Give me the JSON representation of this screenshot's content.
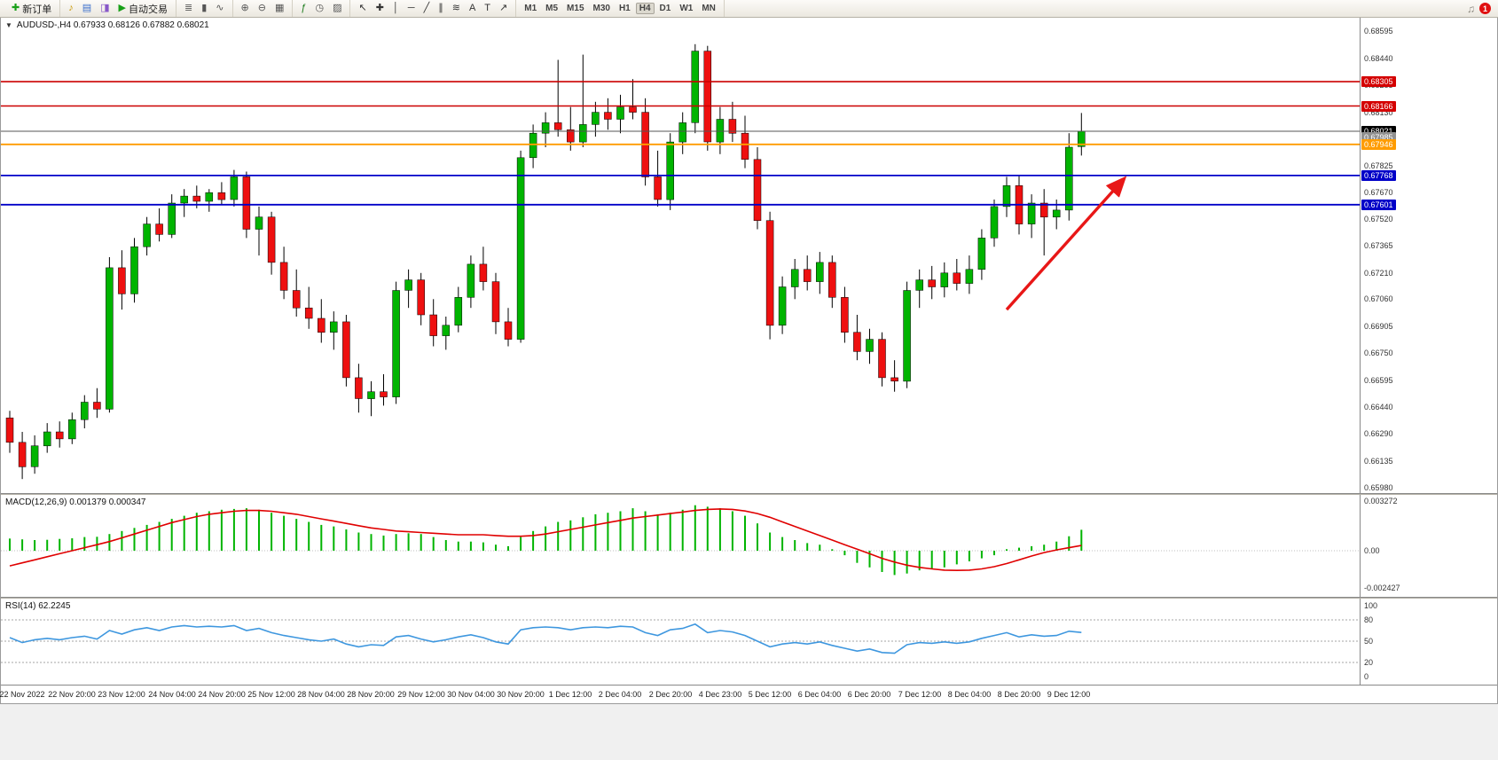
{
  "toolbar": {
    "groups": [
      {
        "items": [
          {
            "name": "new-order-button",
            "glyph": "✚",
            "color": "#18a018",
            "label": "新订单"
          }
        ]
      },
      {
        "items": [
          {
            "name": "sound-alerts-button",
            "glyph": "♪",
            "color": "#c89600"
          },
          {
            "name": "market-watch-button",
            "glyph": "▤",
            "color": "#3a6ecc"
          },
          {
            "name": "data-window-button",
            "glyph": "◨",
            "color": "#8858c8"
          },
          {
            "name": "autotrading-button",
            "glyph": "▶",
            "color": "#18a018",
            "label": "自动交易"
          }
        ]
      },
      {
        "items": [
          {
            "name": "bar-chart-button",
            "glyph": "≣",
            "color": "#555555"
          },
          {
            "name": "candlestick-chart-button",
            "glyph": "▮",
            "color": "#555555"
          },
          {
            "name": "line-chart-button",
            "glyph": "∿",
            "color": "#555555"
          }
        ]
      },
      {
        "items": [
          {
            "name": "zoom-in-button",
            "glyph": "⊕",
            "color": "#555555"
          },
          {
            "name": "zoom-out-button",
            "glyph": "⊖",
            "color": "#555555"
          },
          {
            "name": "tile-windows-button",
            "glyph": "▦",
            "color": "#555555"
          }
        ]
      },
      {
        "items": [
          {
            "name": "indicators-button",
            "glyph": "ƒ",
            "color": "#1a7a1a"
          },
          {
            "name": "periods-button",
            "glyph": "◷",
            "color": "#555555"
          },
          {
            "name": "templates-button",
            "glyph": "▨",
            "color": "#555555"
          }
        ]
      },
      {
        "items": [
          {
            "name": "cursor-button",
            "glyph": "↖",
            "color": "#333333"
          },
          {
            "name": "crosshair-button",
            "glyph": "✚",
            "color": "#333333"
          },
          {
            "name": "vertical-line-button",
            "glyph": "│",
            "color": "#333333"
          },
          {
            "name": "horizontal-line-button",
            "glyph": "─",
            "color": "#333333"
          },
          {
            "name": "trendline-button",
            "glyph": "╱",
            "color": "#333333"
          },
          {
            "name": "channel-button",
            "glyph": "∥",
            "color": "#333333"
          },
          {
            "name": "fibonacci-button",
            "glyph": "≋",
            "color": "#333333"
          },
          {
            "name": "text-button",
            "glyph": "A",
            "color": "#333333"
          },
          {
            "name": "text-label-button",
            "glyph": "T",
            "color": "#333333"
          },
          {
            "name": "arrows-button",
            "glyph": "↗",
            "color": "#333333"
          }
        ]
      },
      {
        "timeframes": true
      }
    ],
    "timeframes": [
      "M1",
      "M5",
      "M15",
      "M30",
      "H1",
      "H4",
      "D1",
      "W1",
      "MN"
    ],
    "active_timeframe": "H4",
    "badge_count": "1"
  },
  "chart": {
    "symbol": "AUDUSD-",
    "period": "H4",
    "price_axis": [
      "0.68595",
      "0.68440",
      "0.68285",
      "0.68130",
      "0.67975",
      "0.67825",
      "0.67670",
      "0.67520",
      "0.67365",
      "0.67210",
      "0.67060",
      "0.66905",
      "0.66750",
      "0.66595",
      "0.66440",
      "0.66290",
      "0.66135",
      "0.65980"
    ],
    "time_axis": [
      "22 Nov 2022",
      "22 Nov 20:00",
      "23 Nov 12:00",
      "24 Nov 04:00",
      "24 Nov 20:00",
      "25 Nov 12:00",
      "28 Nov 04:00",
      "28 Nov 20:00",
      "29 Nov 12:00",
      "30 Nov 04:00",
      "30 Nov 20:00",
      "1 Dec 12:00",
      "2 Dec 04:00",
      "2 Dec 20:00",
      "4 Dec 23:00",
      "5 Dec 12:00",
      "6 Dec 04:00",
      "6 Dec 20:00",
      "7 Dec 12:00",
      "8 Dec 04:00",
      "8 Dec 20:00",
      "9 Dec 12:00"
    ]
  },
  "chart_data": [
    {
      "type": "candlestick",
      "title": "AUDUSD-,H4  0.67933 0.68126 0.67882 0.68021",
      "open": "0.67933",
      "high": "0.68126",
      "low": "0.67882",
      "close": "0.68021",
      "ylim": [
        0.6598,
        0.68595
      ],
      "colors": {
        "up": "#00b400",
        "down": "#ee1010",
        "outline": "#000000"
      },
      "levels": [
        {
          "price": 0.68305,
          "label": "0.68305",
          "color": "#d40000",
          "line": true,
          "line_color": "#cc0000",
          "line_width": 1.6
        },
        {
          "price": 0.68166,
          "label": "0.68166",
          "color": "#d40000",
          "line": true,
          "line_color": "#cc0000",
          "line_width": 1.6
        },
        {
          "price": 0.68021,
          "label": "0.68021",
          "color": "#000000",
          "line": true,
          "line_color": "#555555",
          "line_width": 1
        },
        {
          "price": 0.67985,
          "label": "0.67985",
          "color": "#909090",
          "line": false
        },
        {
          "price": 0.67946,
          "label": "0.67946",
          "color": "#ff9c00",
          "line": true,
          "line_color": "#ff9c00",
          "line_width": 1.8
        },
        {
          "price": 0.67768,
          "label": "0.67768",
          "color": "#0000c8",
          "line": true,
          "line_color": "#0000c8",
          "line_width": 1.8
        },
        {
          "price": 0.67601,
          "label": "0.67601",
          "color": "#0000c8",
          "line": true,
          "line_color": "#0000c8",
          "line_width": 1.8
        }
      ],
      "arrow": {
        "from_bar": 80,
        "from_price": 0.67,
        "to_bar": 89.3,
        "to_price": 0.6774,
        "color": "#e81717"
      },
      "ohlc": [
        [
          0.6638,
          0.6642,
          0.6618,
          0.6624
        ],
        [
          0.6624,
          0.663,
          0.6603,
          0.661
        ],
        [
          0.661,
          0.6628,
          0.6606,
          0.6622
        ],
        [
          0.6622,
          0.6635,
          0.6618,
          0.663
        ],
        [
          0.663,
          0.6636,
          0.6621,
          0.6626
        ],
        [
          0.6626,
          0.6641,
          0.6623,
          0.6637
        ],
        [
          0.6637,
          0.6651,
          0.6632,
          0.6647
        ],
        [
          0.6647,
          0.6655,
          0.6638,
          0.6643
        ],
        [
          0.6643,
          0.673,
          0.6641,
          0.6724
        ],
        [
          0.6724,
          0.6734,
          0.67,
          0.6709
        ],
        [
          0.6709,
          0.6741,
          0.6704,
          0.6736
        ],
        [
          0.6736,
          0.6753,
          0.6731,
          0.6749
        ],
        [
          0.6749,
          0.6758,
          0.6739,
          0.6743
        ],
        [
          0.6743,
          0.6766,
          0.6741,
          0.6761
        ],
        [
          0.6761,
          0.6769,
          0.6753,
          0.6765
        ],
        [
          0.6765,
          0.6771,
          0.6758,
          0.6762
        ],
        [
          0.6762,
          0.6769,
          0.6756,
          0.6767
        ],
        [
          0.6767,
          0.6773,
          0.676,
          0.6763
        ],
        [
          0.6763,
          0.678,
          0.6759,
          0.6776
        ],
        [
          0.6776,
          0.6779,
          0.6741,
          0.6746
        ],
        [
          0.6746,
          0.6759,
          0.6731,
          0.6753
        ],
        [
          0.6753,
          0.6756,
          0.672,
          0.6727
        ],
        [
          0.6727,
          0.6736,
          0.6706,
          0.6711
        ],
        [
          0.6711,
          0.6723,
          0.6696,
          0.6701
        ],
        [
          0.6701,
          0.6713,
          0.6689,
          0.6695
        ],
        [
          0.6695,
          0.6706,
          0.6681,
          0.6687
        ],
        [
          0.6687,
          0.6699,
          0.6677,
          0.6693
        ],
        [
          0.6693,
          0.6697,
          0.6656,
          0.6661
        ],
        [
          0.6661,
          0.6669,
          0.6641,
          0.6649
        ],
        [
          0.6649,
          0.6659,
          0.6639,
          0.6653
        ],
        [
          0.6653,
          0.6663,
          0.6645,
          0.665
        ],
        [
          0.665,
          0.6716,
          0.6646,
          0.6711
        ],
        [
          0.6711,
          0.6723,
          0.6701,
          0.6717
        ],
        [
          0.6717,
          0.6721,
          0.6691,
          0.6697
        ],
        [
          0.6697,
          0.6706,
          0.6679,
          0.6685
        ],
        [
          0.6685,
          0.6696,
          0.6677,
          0.6691
        ],
        [
          0.6691,
          0.6713,
          0.6687,
          0.6707
        ],
        [
          0.6707,
          0.6731,
          0.6701,
          0.6726
        ],
        [
          0.6726,
          0.6736,
          0.6711,
          0.6716
        ],
        [
          0.6716,
          0.6721,
          0.6686,
          0.6693
        ],
        [
          0.6693,
          0.6701,
          0.6679,
          0.6683
        ],
        [
          0.6683,
          0.6791,
          0.6681,
          0.6787
        ],
        [
          0.6787,
          0.6806,
          0.6781,
          0.6801
        ],
        [
          0.6801,
          0.6813,
          0.6793,
          0.6807
        ],
        [
          0.6807,
          0.6843,
          0.6799,
          0.6803
        ],
        [
          0.6803,
          0.6816,
          0.6791,
          0.6796
        ],
        [
          0.6796,
          0.6846,
          0.6793,
          0.6806
        ],
        [
          0.6806,
          0.6819,
          0.6799,
          0.6813
        ],
        [
          0.6813,
          0.6821,
          0.6803,
          0.6809
        ],
        [
          0.6809,
          0.6823,
          0.6801,
          0.6816
        ],
        [
          0.6816,
          0.6832,
          0.6809,
          0.6813
        ],
        [
          0.6813,
          0.6821,
          0.6771,
          0.6776
        ],
        [
          0.6776,
          0.6791,
          0.6759,
          0.6763
        ],
        [
          0.6763,
          0.6801,
          0.6757,
          0.6796
        ],
        [
          0.6796,
          0.6813,
          0.6789,
          0.6807
        ],
        [
          0.6807,
          0.6852,
          0.6801,
          0.6848
        ],
        [
          0.6848,
          0.6851,
          0.6791,
          0.6796
        ],
        [
          0.6796,
          0.6816,
          0.6789,
          0.6809
        ],
        [
          0.6809,
          0.6819,
          0.6796,
          0.6801
        ],
        [
          0.6801,
          0.6811,
          0.6781,
          0.6786
        ],
        [
          0.6786,
          0.6793,
          0.6746,
          0.6751
        ],
        [
          0.6751,
          0.6756,
          0.6683,
          0.6691
        ],
        [
          0.6691,
          0.6719,
          0.6686,
          0.6713
        ],
        [
          0.6713,
          0.6729,
          0.6706,
          0.6723
        ],
        [
          0.6723,
          0.6731,
          0.6711,
          0.6716
        ],
        [
          0.6716,
          0.6733,
          0.6709,
          0.6727
        ],
        [
          0.6727,
          0.6731,
          0.6701,
          0.6707
        ],
        [
          0.6707,
          0.6713,
          0.6681,
          0.6687
        ],
        [
          0.6687,
          0.6697,
          0.6671,
          0.6676
        ],
        [
          0.6676,
          0.6689,
          0.6669,
          0.6683
        ],
        [
          0.6683,
          0.6687,
          0.6656,
          0.6661
        ],
        [
          0.6661,
          0.6671,
          0.6653,
          0.6659
        ],
        [
          0.6659,
          0.6716,
          0.6655,
          0.6711
        ],
        [
          0.6711,
          0.6723,
          0.6701,
          0.6717
        ],
        [
          0.6717,
          0.6725,
          0.6706,
          0.6713
        ],
        [
          0.6713,
          0.6727,
          0.6707,
          0.6721
        ],
        [
          0.6721,
          0.6729,
          0.6711,
          0.6715
        ],
        [
          0.6715,
          0.6731,
          0.6709,
          0.6723
        ],
        [
          0.6723,
          0.6746,
          0.6717,
          0.6741
        ],
        [
          0.6741,
          0.6763,
          0.6736,
          0.6759
        ],
        [
          0.6759,
          0.6776,
          0.6753,
          0.6771
        ],
        [
          0.6771,
          0.6777,
          0.6743,
          0.6749
        ],
        [
          0.6749,
          0.6766,
          0.6741,
          0.6761
        ],
        [
          0.6761,
          0.6769,
          0.6731,
          0.6753
        ],
        [
          0.6753,
          0.6763,
          0.6746,
          0.6757
        ],
        [
          0.6757,
          0.6801,
          0.6751,
          0.6793
        ],
        [
          0.67933,
          0.68126,
          0.67882,
          0.68021
        ]
      ]
    },
    {
      "type": "bar",
      "title": "MACD(12,26,9) 0.001379 0.000347",
      "main_value": "0.001379",
      "signal_value": "0.000347",
      "ylim": [
        -0.002427,
        0.003272
      ],
      "colors": {
        "histogram": "#00b400",
        "signal": "#e00000"
      },
      "axis_labels": [
        {
          "v": 0.003272,
          "t": "0.003272"
        },
        {
          "v": 0,
          "t": "0.00"
        },
        {
          "v": -0.002427,
          "t": "-0.002427"
        }
      ],
      "histogram": [
        0.0008,
        0.00075,
        0.0007,
        0.00072,
        0.00078,
        0.00082,
        0.0009,
        0.00092,
        0.0011,
        0.0013,
        0.0015,
        0.0017,
        0.0019,
        0.0021,
        0.0023,
        0.0025,
        0.0026,
        0.0027,
        0.00275,
        0.0028,
        0.0027,
        0.0025,
        0.0023,
        0.0021,
        0.0019,
        0.0017,
        0.0016,
        0.0014,
        0.0012,
        0.0011,
        0.001,
        0.0011,
        0.00115,
        0.0011,
        0.0009,
        0.0007,
        0.0006,
        0.0006,
        0.00055,
        0.0004,
        0.0003,
        0.0009,
        0.0013,
        0.0016,
        0.0019,
        0.002,
        0.0022,
        0.0024,
        0.0025,
        0.0026,
        0.0028,
        0.0026,
        0.0024,
        0.0025,
        0.0027,
        0.003,
        0.0029,
        0.0028,
        0.0026,
        0.0023,
        0.0018,
        0.0012,
        0.0009,
        0.0007,
        0.0005,
        0.0004,
        0.0001,
        -0.0003,
        -0.0008,
        -0.0011,
        -0.0014,
        -0.0016,
        -0.0015,
        -0.0013,
        -0.0012,
        -0.0011,
        -0.0009,
        -0.0007,
        -0.0005,
        -0.0003,
        0.0001,
        0.0002,
        0.0003,
        0.0004,
        0.0006,
        0.00095,
        0.001379
      ],
      "signal": [
        -0.001,
        -0.0008,
        -0.0006,
        -0.0004,
        -0.0002,
        0,
        0.0002,
        0.0004,
        0.0006,
        0.00085,
        0.0011,
        0.00135,
        0.0016,
        0.00185,
        0.00205,
        0.00225,
        0.0024,
        0.0025,
        0.0026,
        0.00265,
        0.00265,
        0.0026,
        0.0025,
        0.0024,
        0.00225,
        0.0021,
        0.00195,
        0.0018,
        0.00165,
        0.0015,
        0.0014,
        0.0013,
        0.00125,
        0.0012,
        0.00115,
        0.0011,
        0.00105,
        0.00105,
        0.00105,
        0.001,
        0.00095,
        0.00095,
        0.001,
        0.0011,
        0.00125,
        0.0014,
        0.00155,
        0.0017,
        0.00185,
        0.002,
        0.00215,
        0.00225,
        0.00235,
        0.00245,
        0.00255,
        0.00265,
        0.00272,
        0.00275,
        0.00272,
        0.00262,
        0.00245,
        0.0022,
        0.0019,
        0.0016,
        0.0013,
        0.001,
        0.0007,
        0.0004,
        0.0001,
        -0.0002,
        -0.0005,
        -0.00075,
        -0.00095,
        -0.0011,
        -0.0012,
        -0.00128,
        -0.0013,
        -0.00128,
        -0.0012,
        -0.00105,
        -0.00085,
        -0.0006,
        -0.00035,
        -0.00012,
        5e-05,
        0.0002,
        0.000347
      ]
    },
    {
      "type": "line",
      "title": "RSI(14) 62.2245",
      "current_value": "62.2245",
      "ylim": [
        0,
        100
      ],
      "levels": [
        80,
        50,
        20
      ],
      "colors": {
        "line": "#3e97df",
        "level": "#888888"
      },
      "axis_labels": [
        {
          "v": 100,
          "t": "100"
        },
        {
          "v": 80,
          "t": "80"
        },
        {
          "v": 50,
          "t": "50"
        },
        {
          "v": 20,
          "t": "20"
        },
        {
          "v": 0,
          "t": "0"
        }
      ],
      "values": [
        55,
        48,
        52,
        54,
        52,
        55,
        57,
        53,
        65,
        60,
        66,
        69,
        65,
        70,
        72,
        70,
        71,
        70,
        72,
        65,
        68,
        62,
        58,
        55,
        52,
        50,
        53,
        46,
        42,
        45,
        44,
        56,
        58,
        53,
        49,
        52,
        56,
        59,
        55,
        49,
        46,
        66,
        69,
        70,
        69,
        66,
        69,
        70,
        69,
        71,
        70,
        62,
        58,
        66,
        68,
        74,
        62,
        65,
        63,
        58,
        50,
        42,
        46,
        48,
        46,
        49,
        44,
        40,
        36,
        39,
        34,
        33,
        45,
        48,
        47,
        49,
        47,
        49,
        54,
        58,
        62,
        56,
        59,
        57,
        58,
        64,
        62.2
      ]
    }
  ]
}
